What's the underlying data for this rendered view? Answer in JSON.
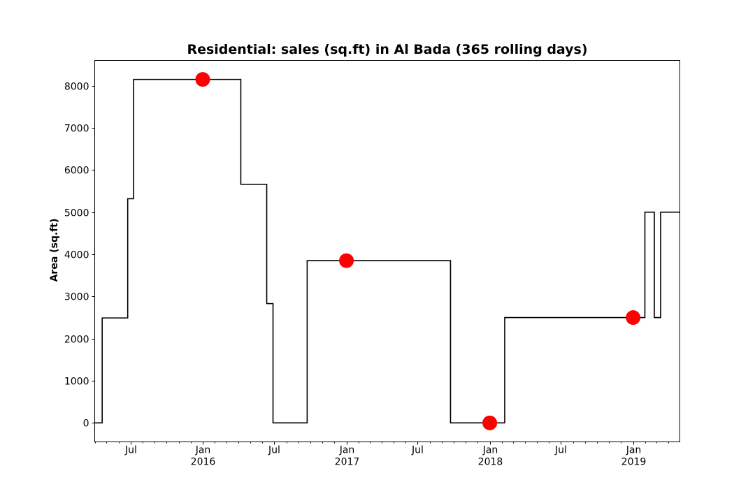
{
  "chart_data": {
    "type": "line",
    "title": "Residential: sales (sq.ft) in Al Bada (365 rolling days)",
    "xlabel": "",
    "ylabel": "Area (sq.ft)",
    "x_axis_type": "date",
    "xlim": [
      "2015-04-01",
      "2019-04-30"
    ],
    "ylim": [
      -450,
      8600
    ],
    "grid": false,
    "y_ticks": [
      0,
      1000,
      2000,
      3000,
      4000,
      5000,
      6000,
      7000,
      8000
    ],
    "x_ticks": [
      {
        "date": "2015-07-01",
        "label": "Jul",
        "sublabel": ""
      },
      {
        "date": "2016-01-01",
        "label": "Jan",
        "sublabel": "2016"
      },
      {
        "date": "2016-07-01",
        "label": "Jul",
        "sublabel": ""
      },
      {
        "date": "2017-01-01",
        "label": "Jan",
        "sublabel": "2017"
      },
      {
        "date": "2017-07-01",
        "label": "Jul",
        "sublabel": ""
      },
      {
        "date": "2018-01-01",
        "label": "Jan",
        "sublabel": "2018"
      },
      {
        "date": "2018-07-01",
        "label": "Jul",
        "sublabel": ""
      },
      {
        "date": "2019-01-01",
        "label": "Jan",
        "sublabel": "2019"
      }
    ],
    "series": [
      {
        "style": "step",
        "color": "#000000",
        "points": [
          {
            "x": "2015-04-01",
            "y": 0
          },
          {
            "x": "2015-04-20",
            "y": 2490
          },
          {
            "x": "2015-06-24",
            "y": 5320
          },
          {
            "x": "2015-07-09",
            "y": 8150
          },
          {
            "x": "2016-04-07",
            "y": 5660
          },
          {
            "x": "2016-06-12",
            "y": 2830
          },
          {
            "x": "2016-06-28",
            "y": 0
          },
          {
            "x": "2016-09-23",
            "y": 3850
          },
          {
            "x": "2017-09-23",
            "y": 0
          },
          {
            "x": "2018-02-08",
            "y": 2500
          },
          {
            "x": "2019-01-31",
            "y": 5000
          },
          {
            "x": "2019-02-24",
            "y": 2500
          },
          {
            "x": "2019-03-12",
            "y": 5000
          }
        ]
      },
      {
        "style": "markers",
        "color": "#ff0000",
        "points": [
          {
            "x": "2016-01-01",
            "y": 8150
          },
          {
            "x": "2017-01-01",
            "y": 3850
          },
          {
            "x": "2018-01-01",
            "y": 0
          },
          {
            "x": "2019-01-01",
            "y": 2500
          }
        ]
      }
    ]
  }
}
